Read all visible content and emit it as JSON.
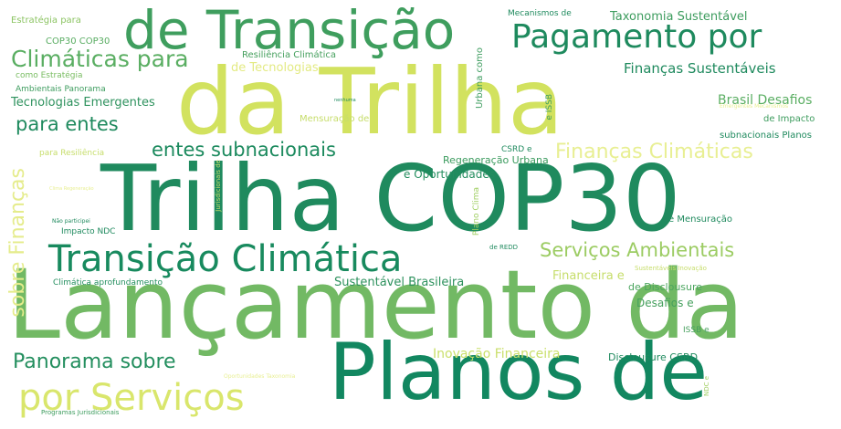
{
  "words": [
    {
      "text": "Lançamento da",
      "color": "#72b964"
    },
    {
      "text": "Trilha COP30",
      "color": "#1f8a5e"
    },
    {
      "text": "da Trilha",
      "color": "#d2e25f"
    },
    {
      "text": "Planos de",
      "color": "#128760"
    },
    {
      "text": "de Transição",
      "color": "#3f9e5e"
    },
    {
      "text": "Pagamento por",
      "color": "#1e8a5e"
    },
    {
      "text": "Transição Climática",
      "color": "#188a5e"
    },
    {
      "text": "por Serviços",
      "color": "#d9e66c"
    },
    {
      "text": "Climáticas para",
      "color": "#5aae62"
    },
    {
      "text": "Serviços Ambientais",
      "color": "#9ccc63"
    },
    {
      "text": "Finanças Climáticas",
      "color": "#e8ef93"
    },
    {
      "text": "entes subnacionais",
      "color": "#1c8a5e"
    },
    {
      "text": "Panorama sobre",
      "color": "#248f5f"
    },
    {
      "text": "para entes",
      "color": "#1f8a5e"
    },
    {
      "text": "sobre Finanças",
      "color": "#e5ec8c"
    },
    {
      "text": "Finanças Sustentáveis",
      "color": "#1f8a5e"
    },
    {
      "text": "Taxonomia Sustentável",
      "color": "#3d9c5e"
    },
    {
      "text": "Inovação Financeira",
      "color": "#c9df6a"
    },
    {
      "text": "Brasil Desafios",
      "color": "#5aae62"
    },
    {
      "text": "Financeira e",
      "color": "#c6dd6a"
    },
    {
      "text": "Sustentável Brasileira",
      "color": "#2e925e"
    },
    {
      "text": "Desafios e",
      "color": "#46a05e"
    },
    {
      "text": "Tecnologias Emergentes",
      "color": "#2e925e"
    },
    {
      "text": "e Oportunidades",
      "color": "#238d5e"
    },
    {
      "text": "de Tecnologias",
      "color": "#e3ea83"
    },
    {
      "text": "Disclousure CSRD",
      "color": "#1f8a5e"
    },
    {
      "text": "Regeneração Urbana",
      "color": "#3b9b5e"
    },
    {
      "text": "de Disclousure",
      "color": "#4ba55f"
    },
    {
      "text": "Resiliência Climática",
      "color": "#46a05e"
    },
    {
      "text": "Mensuração de",
      "color": "#c6dd6a"
    },
    {
      "text": "de Impacto",
      "color": "#3d9c5e"
    },
    {
      "text": "e Mensuração",
      "color": "#1f8a5e"
    },
    {
      "text": "subnacionais Planos",
      "color": "#1f8a5e"
    },
    {
      "text": "Urbana como",
      "color": "#3d9c5e"
    },
    {
      "text": "Plano Clima",
      "color": "#a1cf64"
    },
    {
      "text": "Estratégia para",
      "color": "#8cc463"
    },
    {
      "text": "COP30 COP30",
      "color": "#58ac61"
    },
    {
      "text": "como Estratégia",
      "color": "#7abd63"
    },
    {
      "text": "Ambientais Panorama",
      "color": "#3d9c5e"
    },
    {
      "text": "Mecanismos de",
      "color": "#1f8a5e"
    },
    {
      "text": "Climática aprofundamento",
      "color": "#248f5f"
    },
    {
      "text": "Impacto NDC",
      "color": "#1f8a5e"
    },
    {
      "text": "CSRD e",
      "color": "#1f8a5e"
    },
    {
      "text": "e ISSB",
      "color": "#3d9c5e"
    },
    {
      "text": "ISSB e",
      "color": "#46a05e"
    },
    {
      "text": "para Resiliência",
      "color": "#c6dd6a"
    },
    {
      "text": "Jurisdicionais de",
      "color": "#c6dd6a"
    },
    {
      "text": "Programas Jurisdicionais",
      "color": "#3d9c5e"
    },
    {
      "text": "Sustentáveis Inovação",
      "color": "#c6dd6a"
    },
    {
      "text": "Emergentes Mecanismos",
      "color": "#e8ef93"
    },
    {
      "text": "Oportunidades Taxonomia",
      "color": "#e8ef93"
    },
    {
      "text": "Não participei",
      "color": "#1f8a5e"
    },
    {
      "text": "de REDD",
      "color": "#1f8a5e"
    },
    {
      "text": "NDC e",
      "color": "#a1cf64"
    },
    {
      "text": "Clima Regeneração",
      "color": "#e8ef93"
    },
    {
      "text": "nenhuma",
      "color": "#1f8a5e"
    }
  ]
}
